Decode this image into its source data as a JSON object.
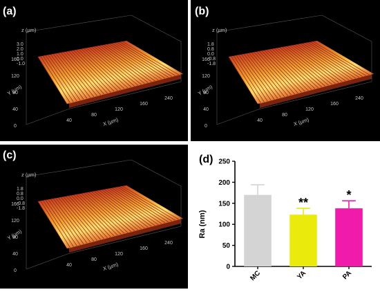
{
  "panels": [
    {
      "label": "(a)",
      "z_title": "z (µm)",
      "z_ticks": [
        "3.0",
        "2.0",
        "1.0",
        "0.0",
        "-1.0"
      ],
      "y_title": "Y (µm)",
      "y_ticks": [
        "160",
        "120",
        "80",
        "40",
        "0"
      ],
      "x_title": "X (µm)",
      "x_ticks": [
        "40",
        "80",
        "120",
        "160",
        "240"
      ]
    },
    {
      "label": "(b)",
      "z_title": "z (µm)",
      "z_ticks": [
        "1.8",
        "0.8",
        "0.0",
        "-0.8",
        "-1.8"
      ],
      "y_title": "Y (µm)",
      "y_ticks": [
        "160",
        "120",
        "80",
        "40",
        "0"
      ],
      "x_title": "X (µm)",
      "x_ticks": [
        "40",
        "80",
        "120",
        "160",
        "240"
      ]
    },
    {
      "label": "(c)",
      "z_title": "z (µm)",
      "z_ticks": [
        "1.8",
        "0.8",
        "0.0",
        "-0.8",
        "-1.8"
      ],
      "y_title": "Y (µm)",
      "y_ticks": [
        "160",
        "120",
        "80",
        "40",
        "0"
      ],
      "x_title": "X (µm)",
      "x_ticks": [
        "40",
        "80",
        "120",
        "160",
        "240"
      ]
    }
  ],
  "chart_data": {
    "type": "bar",
    "panel_label": "(d)",
    "categories": [
      "MC",
      "YA",
      "PA"
    ],
    "values": [
      170,
      123,
      138
    ],
    "errors": [
      24,
      15,
      18
    ],
    "significance": [
      "",
      "**",
      "*"
    ],
    "colors": [
      "#d4d4d4",
      "#eaea0c",
      "#f01bab"
    ],
    "ylabel": "Ra (nm)",
    "xlabel": "",
    "ylim": [
      0,
      250
    ],
    "yticks": [
      0,
      50,
      100,
      150,
      200,
      250
    ],
    "grid": false
  }
}
